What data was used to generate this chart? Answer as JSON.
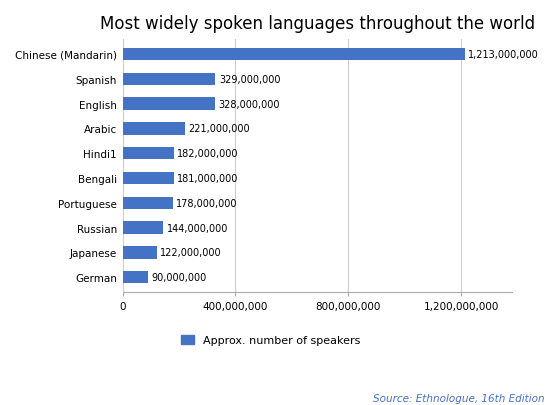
{
  "title": "Most widely spoken languages throughout the world",
  "languages": [
    "Chinese (Mandarin)",
    "Spanish",
    "English",
    "Arabic",
    "Hindi1",
    "Bengali",
    "Portuguese",
    "Russian",
    "Japanese",
    "German"
  ],
  "values": [
    1213000000,
    329000000,
    328000000,
    221000000,
    182000000,
    181000000,
    178000000,
    144000000,
    122000000,
    90000000
  ],
  "labels": [
    "1,213,000,000",
    "329,000,000",
    "328,000,000",
    "221,000,000",
    "182,000,000",
    "181,000,000",
    "178,000,000",
    "144,000,000",
    "122,000,000",
    "90,000,000"
  ],
  "bar_color": "#4472C4",
  "background_color": "#FFFFFF",
  "legend_label": "Approx. number of speakers",
  "source_text": "Source: Ethnologue, 16th Edition",
  "source_color": "#4472C4",
  "xlim": [
    0,
    1380000000
  ],
  "xticks": [
    0,
    400000000,
    800000000,
    1200000000
  ],
  "xtick_labels": [
    "0",
    "400,000,000",
    "800,000,000",
    "1,200,000,000"
  ],
  "title_fontsize": 12,
  "label_fontsize": 7,
  "tick_fontsize": 7.5,
  "legend_fontsize": 8,
  "source_fontsize": 7.5,
  "bar_height": 0.5
}
